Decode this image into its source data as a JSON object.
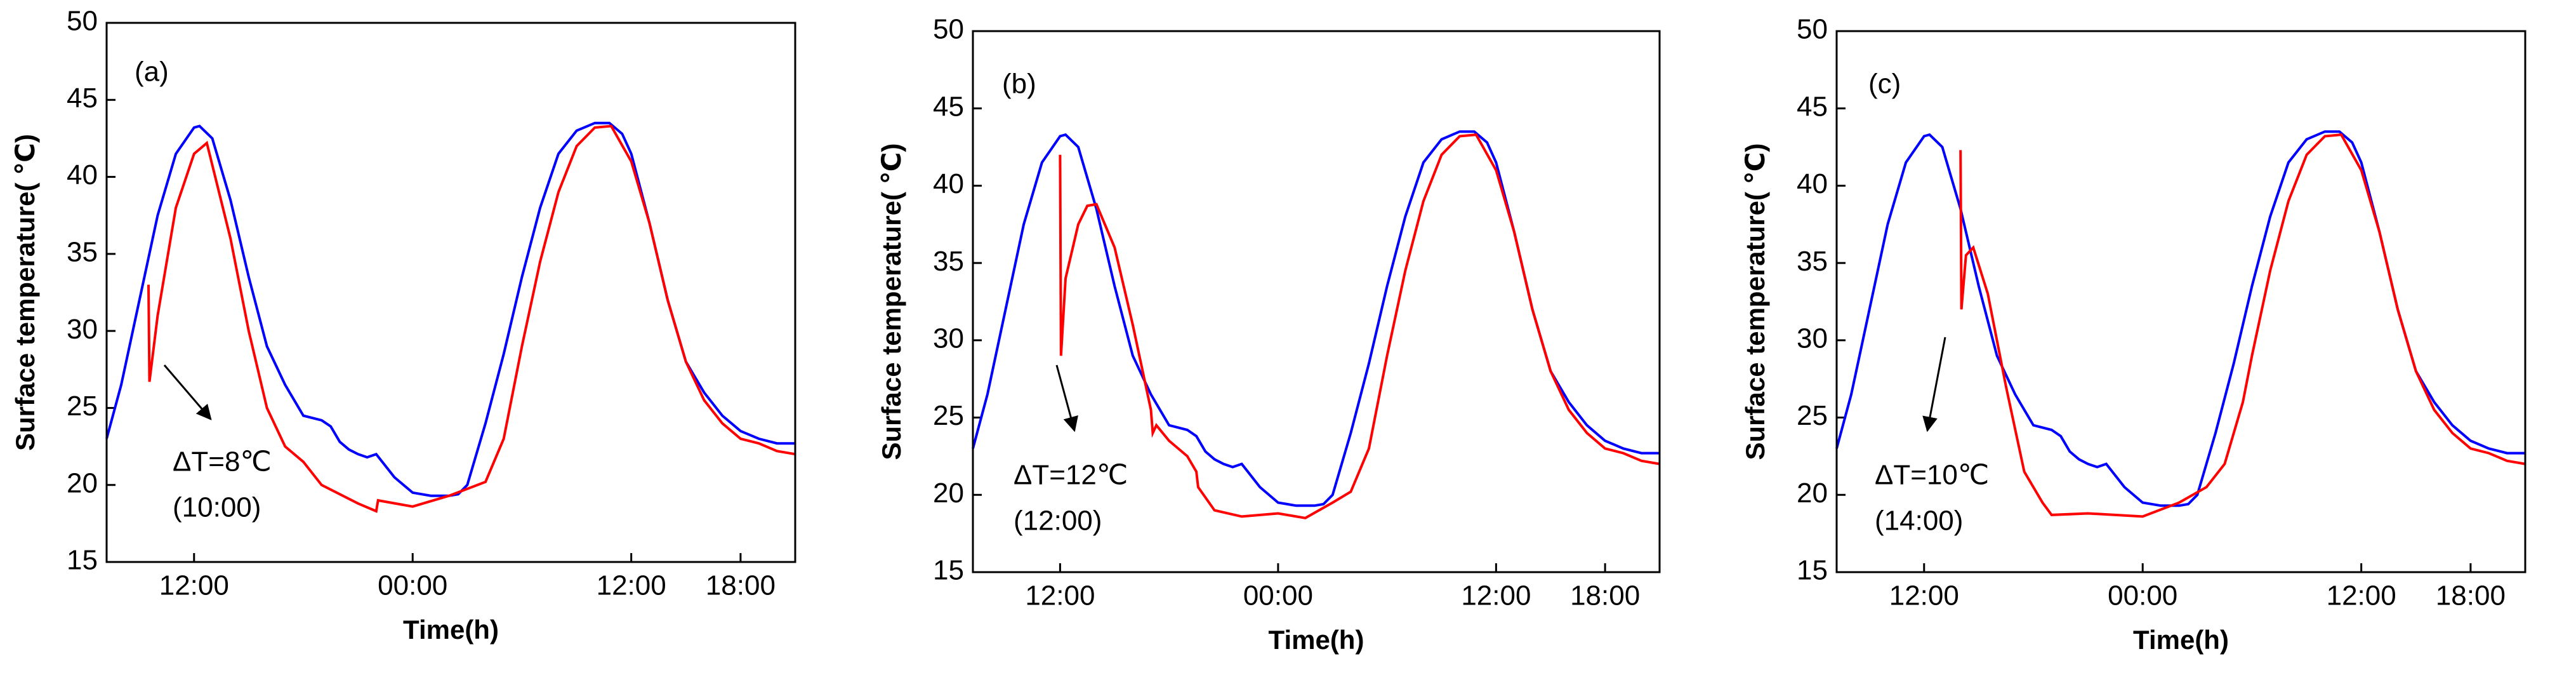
{
  "chart_data": [
    {
      "type": "line",
      "panel_label": "(a)",
      "annotation": [
        "ΔT=8℃",
        "(10:00)"
      ],
      "xlabel": "Time(h)",
      "ylabel": "Surface temperature( ℃)",
      "xlim": [
        7.2,
        45
      ],
      "ylim": [
        15,
        50
      ],
      "xticks": [
        {
          "value": 12,
          "label": "12:00"
        },
        {
          "value": 24,
          "label": "00:00"
        },
        {
          "value": 36,
          "label": "12:00"
        },
        {
          "value": 42,
          "label": "18:00"
        }
      ],
      "yticks": [
        15,
        20,
        25,
        30,
        35,
        40,
        45,
        50
      ],
      "series": [
        {
          "color": "#0000ff",
          "x": [
            7.2,
            8,
            9,
            10,
            11,
            12,
            12.3,
            13,
            14,
            15,
            16,
            17,
            18,
            19,
            19.5,
            20,
            20.5,
            21,
            21.5,
            22,
            23,
            24,
            25,
            26,
            26.5,
            27,
            28,
            29,
            30,
            31,
            32,
            33,
            34,
            34.8,
            35.5,
            36,
            37,
            38,
            39,
            40,
            41,
            42,
            43,
            44,
            45
          ],
          "values": [
            23,
            26.5,
            32,
            37.5,
            41.5,
            43.2,
            43.3,
            42.5,
            38.5,
            33.5,
            29,
            26.5,
            24.5,
            24.2,
            23.8,
            22.8,
            22.3,
            22,
            21.8,
            22,
            20.5,
            19.5,
            19.3,
            19.3,
            19.4,
            20,
            24,
            28.5,
            33.5,
            38,
            41.5,
            43,
            43.5,
            43.5,
            42.8,
            41.5,
            37,
            32,
            28,
            26,
            24.5,
            23.5,
            23,
            22.7,
            22.7
          ]
        },
        {
          "color": "#ff0000",
          "x": [
            9.5,
            9.55,
            10,
            11,
            12,
            12.7,
            14,
            15,
            16,
            17,
            18,
            19,
            21,
            22,
            22.1,
            24,
            26,
            28,
            29,
            30,
            31,
            32,
            33,
            34,
            34.9,
            36,
            37,
            38,
            39,
            40,
            41,
            42,
            43,
            44,
            45
          ],
          "values": [
            33,
            26.7,
            31,
            38,
            41.5,
            42.2,
            36,
            30,
            25,
            22.5,
            21.5,
            20,
            18.8,
            18.3,
            19,
            18.6,
            19.3,
            20.2,
            23,
            29,
            34.5,
            39,
            42,
            43.2,
            43.3,
            41,
            37,
            32,
            28,
            25.5,
            24,
            23,
            22.7,
            22.2,
            22
          ]
        }
      ]
    },
    {
      "type": "line",
      "panel_label": "(b)",
      "annotation": [
        "ΔT=12℃",
        "(12:00)"
      ],
      "xlabel": "Time(h)",
      "ylabel": "Surface temperature( ℃)",
      "xlim": [
        7.2,
        45
      ],
      "ylim": [
        15,
        50
      ],
      "xticks": [
        {
          "value": 12,
          "label": "12:00"
        },
        {
          "value": 24,
          "label": "00:00"
        },
        {
          "value": 36,
          "label": "12:00"
        },
        {
          "value": 42,
          "label": "18:00"
        }
      ],
      "yticks": [
        15,
        20,
        25,
        30,
        35,
        40,
        45,
        50
      ],
      "series": [
        {
          "color": "#0000ff",
          "x": [
            7.2,
            8,
            9,
            10,
            11,
            12,
            12.3,
            13,
            14,
            15,
            16,
            17,
            18,
            19,
            19.5,
            20,
            20.5,
            21,
            21.5,
            22,
            23,
            24,
            25,
            26,
            26.5,
            27,
            28,
            29,
            30,
            31,
            32,
            33,
            34,
            34.8,
            35.5,
            36,
            37,
            38,
            39,
            40,
            41,
            42,
            43,
            44,
            45
          ],
          "values": [
            23,
            26.5,
            32,
            37.5,
            41.5,
            43.2,
            43.3,
            42.5,
            38.5,
            33.5,
            29,
            26.5,
            24.5,
            24.2,
            23.8,
            22.8,
            22.3,
            22,
            21.8,
            22,
            20.5,
            19.5,
            19.3,
            19.3,
            19.4,
            20,
            24,
            28.5,
            33.5,
            38,
            41.5,
            43,
            43.5,
            43.5,
            42.8,
            41.5,
            37,
            32,
            28,
            26,
            24.5,
            23.5,
            23,
            22.7,
            22.7
          ]
        },
        {
          "color": "#ff0000",
          "x": [
            12,
            12.05,
            12.3,
            13,
            13.5,
            14,
            15,
            16,
            17,
            17.1,
            17.3,
            18,
            19,
            19.5,
            19.6,
            20.5,
            22,
            24,
            25.5,
            27,
            28,
            29,
            30,
            31,
            32,
            33,
            34,
            34.9,
            36,
            37,
            38,
            39,
            40,
            41,
            42,
            43,
            44,
            45
          ],
          "values": [
            42,
            29,
            34,
            37.5,
            38.7,
            38.8,
            36,
            31,
            25.5,
            24,
            24.5,
            23.5,
            22.5,
            21.5,
            20.5,
            19,
            18.6,
            18.8,
            18.5,
            19.5,
            20.2,
            23,
            29,
            34.5,
            39,
            42,
            43.2,
            43.3,
            41,
            37,
            32,
            28,
            25.5,
            24,
            23,
            22.7,
            22.2,
            22
          ]
        }
      ]
    },
    {
      "type": "line",
      "panel_label": "(c)",
      "annotation": [
        "ΔT=10℃",
        "(14:00)"
      ],
      "xlabel": "Time(h)",
      "ylabel": "Surface temperature( ℃)",
      "xlim": [
        7.2,
        45
      ],
      "ylim": [
        15,
        50
      ],
      "xticks": [
        {
          "value": 12,
          "label": "12:00"
        },
        {
          "value": 24,
          "label": "00:00"
        },
        {
          "value": 36,
          "label": "12:00"
        },
        {
          "value": 42,
          "label": "18:00"
        }
      ],
      "yticks": [
        15,
        20,
        25,
        30,
        35,
        40,
        45,
        50
      ],
      "series": [
        {
          "color": "#0000ff",
          "x": [
            7.2,
            8,
            9,
            10,
            11,
            12,
            12.3,
            13,
            14,
            15,
            16,
            17,
            18,
            19,
            19.5,
            20,
            20.5,
            21,
            21.5,
            22,
            23,
            24,
            25,
            26,
            26.5,
            27,
            28,
            29,
            30,
            31,
            32,
            33,
            34,
            34.8,
            35.5,
            36,
            37,
            38,
            39,
            40,
            41,
            42,
            43,
            44,
            45
          ],
          "values": [
            23,
            26.5,
            32,
            37.5,
            41.5,
            43.2,
            43.3,
            42.5,
            38.5,
            33.5,
            29,
            26.5,
            24.5,
            24.2,
            23.8,
            22.8,
            22.3,
            22,
            21.8,
            22,
            20.5,
            19.5,
            19.3,
            19.3,
            19.4,
            20,
            24,
            28.5,
            33.5,
            38,
            41.5,
            43,
            43.5,
            43.5,
            42.8,
            41.5,
            37,
            32,
            28,
            26,
            24.5,
            23.5,
            23,
            22.7,
            22.7
          ]
        },
        {
          "color": "#ff0000",
          "x": [
            14,
            14.05,
            14.3,
            14.7,
            15.5,
            16.5,
            17.5,
            18.5,
            19,
            21,
            24,
            26,
            27.5,
            28.5,
            29.5,
            30,
            31,
            32,
            33,
            34,
            34.9,
            36,
            37,
            38,
            39,
            40,
            41,
            42,
            43,
            44,
            45
          ],
          "values": [
            42.3,
            32,
            35.5,
            36,
            33,
            27,
            21.5,
            19.5,
            18.7,
            18.8,
            18.6,
            19.5,
            20.5,
            22,
            26,
            29,
            34.5,
            39,
            42,
            43.2,
            43.3,
            41,
            37,
            32,
            28,
            25.5,
            24,
            23,
            22.7,
            22.2,
            22
          ]
        }
      ]
    }
  ]
}
